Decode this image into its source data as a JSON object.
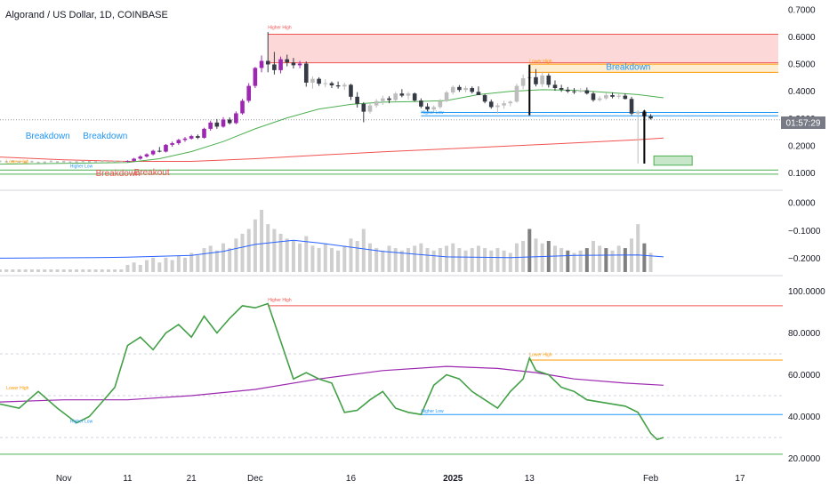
{
  "title": "Algorand / US Dollar, 1D, COINBASE",
  "countdown": "01:57:29",
  "colors": {
    "bull": "#9c27b0",
    "bear": "#363a45",
    "neutral": "#bdbdbd",
    "sma_fast": "#4caf50",
    "sma_slow": "#ef5350",
    "vol_ma": "#2962ff",
    "rsi": "#43a047",
    "rsi_ma": "#9c27b0",
    "red": "#ef5350",
    "orange": "#ff9800",
    "blue": "#2196f3",
    "green": "#4caf50",
    "zone_red": "#fccbcb",
    "zone_orange": "#ffe9c7",
    "zone_green": "#c8e6c9"
  },
  "chart_data": [
    {
      "type": "candlestick",
      "name": "price",
      "y_ticks": [
        "0.7000",
        "0.6000",
        "0.5000",
        "0.4000",
        "0.3000",
        "0.2000",
        "0.1000"
      ],
      "ylim": [
        0.075,
        0.71
      ],
      "x_ticks": [
        {
          "label": "Nov",
          "day": -10
        },
        {
          "label": "11",
          "day": 0
        },
        {
          "label": "21",
          "day": 10
        },
        {
          "label": "Dec",
          "day": 20
        },
        {
          "label": "16",
          "day": 35
        },
        {
          "label": "2025",
          "day": 51
        },
        {
          "label": "13",
          "day": 63
        },
        {
          "label": "Feb",
          "day": 82
        },
        {
          "label": "17",
          "day": 96
        }
      ],
      "xlim_days": [
        -20,
        102
      ],
      "candles": [
        [
          0.143,
          0.146,
          0.139,
          0.144
        ],
        [
          0.144,
          0.155,
          0.142,
          0.152
        ],
        [
          0.152,
          0.165,
          0.148,
          0.16
        ],
        [
          0.16,
          0.172,
          0.156,
          0.168
        ],
        [
          0.168,
          0.185,
          0.164,
          0.181
        ],
        [
          0.181,
          0.195,
          0.175,
          0.178
        ],
        [
          0.178,
          0.206,
          0.175,
          0.203
        ],
        [
          0.203,
          0.215,
          0.196,
          0.209
        ],
        [
          0.209,
          0.225,
          0.203,
          0.221
        ],
        [
          0.221,
          0.232,
          0.214,
          0.226
        ],
        [
          0.226,
          0.24,
          0.222,
          0.235
        ],
        [
          0.235,
          0.241,
          0.224,
          0.229
        ],
        [
          0.229,
          0.266,
          0.226,
          0.262
        ],
        [
          0.262,
          0.292,
          0.255,
          0.285
        ],
        [
          0.285,
          0.298,
          0.262,
          0.27
        ],
        [
          0.27,
          0.305,
          0.266,
          0.296
        ],
        [
          0.296,
          0.304,
          0.278,
          0.283
        ],
        [
          0.283,
          0.326,
          0.279,
          0.319
        ],
        [
          0.319,
          0.372,
          0.314,
          0.365
        ],
        [
          0.365,
          0.43,
          0.358,
          0.42
        ],
        [
          0.42,
          0.49,
          0.412,
          0.486
        ],
        [
          0.486,
          0.532,
          0.47,
          0.512
        ],
        [
          0.512,
          0.618,
          0.47,
          0.499
        ],
        [
          0.499,
          0.545,
          0.462,
          0.478
        ],
        [
          0.478,
          0.528,
          0.466,
          0.518
        ],
        [
          0.518,
          0.535,
          0.492,
          0.506
        ],
        [
          0.506,
          0.523,
          0.484,
          0.496
        ],
        [
          0.496,
          0.512,
          0.485,
          0.502
        ],
        [
          0.502,
          0.51,
          0.417,
          0.432
        ],
        [
          0.432,
          0.455,
          0.41,
          0.446
        ],
        [
          0.446,
          0.452,
          0.42,
          0.428
        ],
        [
          0.428,
          0.444,
          0.415,
          0.43
        ],
        [
          0.43,
          0.436,
          0.412,
          0.422
        ],
        [
          0.422,
          0.436,
          0.41,
          0.418
        ],
        [
          0.418,
          0.432,
          0.405,
          0.424
        ],
        [
          0.424,
          0.428,
          0.368,
          0.38
        ],
        [
          0.38,
          0.397,
          0.34,
          0.354
        ],
        [
          0.354,
          0.36,
          0.286,
          0.325
        ],
        [
          0.325,
          0.356,
          0.318,
          0.348
        ],
        [
          0.348,
          0.372,
          0.34,
          0.364
        ],
        [
          0.364,
          0.384,
          0.35,
          0.374
        ],
        [
          0.374,
          0.382,
          0.356,
          0.368
        ],
        [
          0.368,
          0.398,
          0.362,
          0.392
        ],
        [
          0.392,
          0.408,
          0.378,
          0.384
        ],
        [
          0.384,
          0.398,
          0.37,
          0.392
        ],
        [
          0.392,
          0.396,
          0.362,
          0.366
        ],
        [
          0.366,
          0.374,
          0.338,
          0.344
        ],
        [
          0.344,
          0.356,
          0.326,
          0.333
        ],
        [
          0.333,
          0.348,
          0.325,
          0.342
        ],
        [
          0.342,
          0.372,
          0.336,
          0.364
        ],
        [
          0.364,
          0.402,
          0.36,
          0.396
        ],
        [
          0.396,
          0.422,
          0.388,
          0.416
        ],
        [
          0.416,
          0.423,
          0.398,
          0.405
        ],
        [
          0.405,
          0.42,
          0.396,
          0.412
        ],
        [
          0.412,
          0.418,
          0.392,
          0.398
        ],
        [
          0.398,
          0.418,
          0.386,
          0.386
        ],
        [
          0.386,
          0.39,
          0.356,
          0.362
        ],
        [
          0.362,
          0.37,
          0.336,
          0.342
        ],
        [
          0.342,
          0.356,
          0.318,
          0.348
        ],
        [
          0.348,
          0.366,
          0.336,
          0.356
        ],
        [
          0.356,
          0.366,
          0.345,
          0.362
        ],
        [
          0.362,
          0.428,
          0.358,
          0.42
        ],
        [
          0.42,
          0.462,
          0.408,
          0.448
        ],
        [
          0.448,
          0.498,
          0.312,
          0.452
        ],
        [
          0.452,
          0.482,
          0.418,
          0.426
        ],
        [
          0.426,
          0.472,
          0.416,
          0.458
        ],
        [
          0.458,
          0.466,
          0.414,
          0.424
        ],
        [
          0.424,
          0.44,
          0.402,
          0.412
        ],
        [
          0.412,
          0.424,
          0.398,
          0.406
        ],
        [
          0.406,
          0.416,
          0.394,
          0.4
        ],
        [
          0.4,
          0.412,
          0.39,
          0.398
        ],
        [
          0.398,
          0.412,
          0.396,
          0.404
        ],
        [
          0.404,
          0.414,
          0.388,
          0.392
        ],
        [
          0.392,
          0.398,
          0.362,
          0.368
        ],
        [
          0.368,
          0.382,
          0.362,
          0.374
        ],
        [
          0.374,
          0.394,
          0.368,
          0.386
        ],
        [
          0.386,
          0.396,
          0.374,
          0.38
        ],
        [
          0.38,
          0.392,
          0.372,
          0.384
        ],
        [
          0.384,
          0.392,
          0.37,
          0.372
        ],
        [
          0.372,
          0.38,
          0.312,
          0.318
        ],
        [
          0.318,
          0.33,
          0.134,
          0.325
        ],
        [
          0.325,
          0.332,
          0.3,
          0.308
        ],
        [
          0.308,
          0.316,
          0.296,
          0.3
        ]
      ],
      "pre_candles": [
        0.142,
        0.141,
        0.143,
        0.14,
        0.139,
        0.141,
        0.138,
        0.139,
        0.142,
        0.14,
        0.141,
        0.139,
        0.14,
        0.142,
        0.141,
        0.14,
        0.143,
        0.141,
        0.142,
        0.14
      ],
      "sma_fast": [
        [
          -20,
          0.132
        ],
        [
          0,
          0.138
        ],
        [
          5,
          0.152
        ],
        [
          10,
          0.178
        ],
        [
          15,
          0.215
        ],
        [
          20,
          0.262
        ],
        [
          25,
          0.302
        ],
        [
          30,
          0.335
        ],
        [
          35,
          0.352
        ],
        [
          40,
          0.36
        ],
        [
          45,
          0.362
        ],
        [
          50,
          0.366
        ],
        [
          55,
          0.388
        ],
        [
          60,
          0.4
        ],
        [
          65,
          0.406
        ],
        [
          70,
          0.404
        ],
        [
          75,
          0.396
        ],
        [
          80,
          0.388
        ],
        [
          84,
          0.376
        ]
      ],
      "sma_slow": [
        [
          -20,
          0.158
        ],
        [
          -10,
          0.148
        ],
        [
          0,
          0.142
        ],
        [
          10,
          0.142
        ],
        [
          20,
          0.152
        ],
        [
          30,
          0.165
        ],
        [
          40,
          0.177
        ],
        [
          50,
          0.188
        ],
        [
          60,
          0.199
        ],
        [
          70,
          0.21
        ],
        [
          80,
          0.222
        ],
        [
          84,
          0.228
        ]
      ],
      "annotations": [
        {
          "text": "Higher High",
          "day": 22,
          "y": 0.63,
          "color": "#ef5350"
        },
        {
          "text": "Lower High",
          "day": 63,
          "y": 0.505,
          "color": "#ff9800"
        },
        {
          "text": "Higher Low",
          "day": 46,
          "y": 0.318,
          "color": "#2196f3"
        },
        {
          "text": "Lower High",
          "day": -19,
          "y": 0.136,
          "color": "#ff9800"
        },
        {
          "text": "Higher Low",
          "day": -9,
          "y": 0.12,
          "color": "#2196f3"
        }
      ],
      "labels": [
        {
          "text": "Breakdown",
          "day": -16,
          "y": 0.225,
          "color": "#2196f3"
        },
        {
          "text": "Breakdown",
          "day": -7,
          "y": 0.225,
          "color": "#2196f3"
        },
        {
          "text": "Breakdown",
          "day": 75,
          "y": 0.48,
          "color": "#2196f3"
        },
        {
          "text": "Breakout",
          "day": 1,
          "y": 0.091,
          "color": "#ef5350"
        },
        {
          "text": "Breakdown",
          "day": -5,
          "y": 0.088,
          "color": "#ef5350"
        }
      ]
    },
    {
      "type": "bar",
      "name": "volume",
      "y_ticks": [
        "0.0000",
        "−0.1000",
        "−0.2000"
      ],
      "ylim": [
        -0.25,
        0.02
      ],
      "volume": [
        3,
        4,
        3,
        5,
        6,
        4,
        6,
        5,
        7,
        6,
        8,
        7,
        10,
        11,
        9,
        12,
        10,
        14,
        16,
        18,
        22,
        26,
        20,
        18,
        16,
        14,
        13,
        12,
        15,
        11,
        10,
        12,
        10,
        9,
        11,
        14,
        13,
        18,
        12,
        10,
        9,
        11,
        10,
        9,
        10,
        11,
        12,
        10,
        9,
        10,
        11,
        12,
        10,
        9,
        10,
        11,
        10,
        9,
        10,
        9,
        8,
        12,
        13,
        18,
        14,
        12,
        13,
        11,
        10,
        9,
        8,
        9,
        10,
        13,
        11,
        10,
        9,
        11,
        10,
        14,
        20,
        12,
        8
      ]
    },
    {
      "type": "line",
      "name": "rsi",
      "y_ticks": [
        "100.0000",
        "80.0000",
        "60.0000",
        "40.0000",
        "20.0000"
      ],
      "ylim": [
        16,
        104
      ],
      "rsi": [
        [
          -20,
          46
        ],
        [
          -17,
          44
        ],
        [
          -14,
          52
        ],
        [
          -11,
          44
        ],
        [
          -8,
          37
        ],
        [
          -6,
          40
        ],
        [
          -4,
          47
        ],
        [
          -2,
          54
        ],
        [
          0,
          74
        ],
        [
          2,
          78
        ],
        [
          4,
          72
        ],
        [
          6,
          80
        ],
        [
          8,
          84
        ],
        [
          10,
          78
        ],
        [
          12,
          88
        ],
        [
          14,
          80
        ],
        [
          16,
          87
        ],
        [
          18,
          93
        ],
        [
          20,
          92
        ],
        [
          22,
          94
        ],
        [
          24,
          76
        ],
        [
          26,
          58
        ],
        [
          28,
          61
        ],
        [
          30,
          58
        ],
        [
          32,
          56
        ],
        [
          34,
          42
        ],
        [
          36,
          43
        ],
        [
          38,
          48
        ],
        [
          40,
          52
        ],
        [
          42,
          44
        ],
        [
          44,
          42
        ],
        [
          46,
          41
        ],
        [
          48,
          55
        ],
        [
          50,
          60
        ],
        [
          52,
          58
        ],
        [
          54,
          52
        ],
        [
          56,
          48
        ],
        [
          58,
          44
        ],
        [
          60,
          52
        ],
        [
          62,
          58
        ],
        [
          63,
          68
        ],
        [
          64,
          62
        ],
        [
          66,
          60
        ],
        [
          68,
          54
        ],
        [
          70,
          52
        ],
        [
          72,
          48
        ],
        [
          74,
          47
        ],
        [
          76,
          46
        ],
        [
          78,
          45
        ],
        [
          80,
          42
        ],
        [
          82,
          32
        ],
        [
          83,
          29
        ],
        [
          84,
          30
        ]
      ],
      "rsi_ma": [
        [
          -20,
          47
        ],
        [
          -10,
          48
        ],
        [
          0,
          48
        ],
        [
          10,
          50
        ],
        [
          20,
          53
        ],
        [
          30,
          58
        ],
        [
          40,
          62
        ],
        [
          50,
          64
        ],
        [
          58,
          63
        ],
        [
          64,
          61
        ],
        [
          70,
          58
        ],
        [
          78,
          56
        ],
        [
          84,
          55
        ]
      ],
      "dashed_levels": [
        70,
        50,
        30
      ]
    }
  ]
}
